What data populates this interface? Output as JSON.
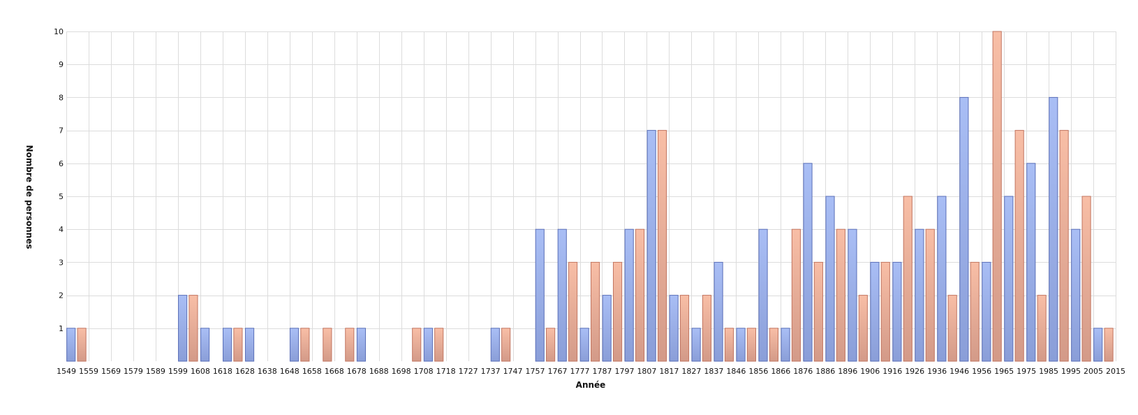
{
  "chart_data": {
    "type": "bar",
    "xlabel": "Année",
    "ylabel": "Nombre de personnes",
    "ylim": [
      0,
      10
    ],
    "yticks": [
      1,
      2,
      3,
      4,
      5,
      6,
      7,
      8,
      9,
      10
    ],
    "grid": true,
    "legend": "none",
    "colors": {
      "series_1": "#a4b8f0",
      "series_2": "#f5b9a2",
      "grid": "#dcdcdc"
    },
    "x_tick_labels": [
      "1549",
      "1559",
      "1569",
      "1579",
      "1589",
      "1599",
      "1608",
      "1618",
      "1628",
      "1638",
      "1648",
      "1658",
      "1668",
      "1678",
      "1688",
      "1698",
      "1708",
      "1718",
      "1727",
      "1737",
      "1747",
      "1757",
      "1767",
      "1777",
      "1787",
      "1797",
      "1807",
      "1817",
      "1827",
      "1837",
      "1846",
      "1856",
      "1866",
      "1876",
      "1886",
      "1896",
      "1906",
      "1916",
      "1926",
      "1936",
      "1946",
      "1956",
      "1965",
      "1975",
      "1985",
      "1995",
      "2005",
      "2015"
    ],
    "series": [
      {
        "values": [
          1,
          0,
          0,
          0,
          0,
          2,
          1,
          1,
          1,
          0,
          1,
          0,
          0,
          1,
          0,
          0,
          1,
          0,
          0,
          1,
          0,
          4,
          4,
          1,
          2,
          4,
          7,
          2,
          1,
          3,
          1,
          4,
          1,
          6,
          5,
          4,
          3,
          3,
          4,
          5,
          8,
          3,
          5,
          6,
          8,
          4,
          1
        ]
      },
      {
        "values": [
          1,
          0,
          0,
          0,
          0,
          2,
          0,
          1,
          0,
          0,
          1,
          1,
          1,
          0,
          0,
          1,
          1,
          0,
          0,
          1,
          0,
          1,
          3,
          3,
          3,
          4,
          7,
          2,
          2,
          1,
          1,
          1,
          4,
          3,
          4,
          2,
          3,
          5,
          4,
          2,
          3,
          10,
          7,
          2,
          7,
          5,
          1
        ]
      }
    ]
  }
}
